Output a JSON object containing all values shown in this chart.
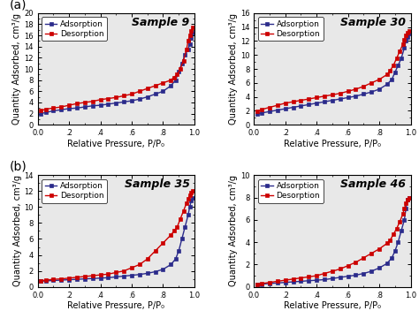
{
  "panels": [
    {
      "label": "(a)",
      "sample": "Sample 9",
      "ylim": [
        0,
        20
      ],
      "yticks": [
        0,
        2,
        4,
        6,
        8,
        10,
        12,
        14,
        16,
        18,
        20
      ],
      "adsorption_x": [
        0.02,
        0.05,
        0.1,
        0.15,
        0.2,
        0.25,
        0.3,
        0.35,
        0.4,
        0.45,
        0.5,
        0.55,
        0.6,
        0.65,
        0.7,
        0.75,
        0.8,
        0.85,
        0.88,
        0.9,
        0.92,
        0.94,
        0.96,
        0.97,
        0.98,
        0.99
      ],
      "adsorption_y": [
        2.0,
        2.2,
        2.5,
        2.7,
        2.9,
        3.0,
        3.2,
        3.4,
        3.5,
        3.7,
        3.9,
        4.1,
        4.3,
        4.6,
        5.0,
        5.5,
        6.0,
        7.0,
        8.0,
        9.5,
        11.0,
        12.5,
        13.5,
        14.5,
        15.5,
        16.5
      ],
      "desorption_x": [
        0.99,
        0.98,
        0.97,
        0.96,
        0.95,
        0.93,
        0.91,
        0.89,
        0.87,
        0.85,
        0.8,
        0.75,
        0.7,
        0.65,
        0.6,
        0.55,
        0.5,
        0.45,
        0.4,
        0.35,
        0.3,
        0.25,
        0.2,
        0.15,
        0.1,
        0.05,
        0.02
      ],
      "desorption_y": [
        17.5,
        16.8,
        16.0,
        15.0,
        13.5,
        11.5,
        10.0,
        9.0,
        8.5,
        8.0,
        7.5,
        7.0,
        6.5,
        6.0,
        5.5,
        5.2,
        4.9,
        4.7,
        4.5,
        4.2,
        4.0,
        3.8,
        3.5,
        3.2,
        3.0,
        2.8,
        2.5
      ]
    },
    {
      "label": "",
      "sample": "Sample 30",
      "ylim": [
        0,
        16
      ],
      "yticks": [
        0,
        2,
        4,
        6,
        8,
        10,
        12,
        14,
        16
      ],
      "adsorption_x": [
        0.02,
        0.05,
        0.1,
        0.15,
        0.2,
        0.25,
        0.3,
        0.35,
        0.4,
        0.45,
        0.5,
        0.55,
        0.6,
        0.65,
        0.7,
        0.75,
        0.8,
        0.85,
        0.88,
        0.9,
        0.92,
        0.94,
        0.96,
        0.97,
        0.98,
        0.99
      ],
      "adsorption_y": [
        1.5,
        1.7,
        1.9,
        2.1,
        2.3,
        2.5,
        2.7,
        2.9,
        3.1,
        3.3,
        3.5,
        3.7,
        3.9,
        4.1,
        4.4,
        4.7,
        5.1,
        5.8,
        6.5,
        7.5,
        8.5,
        9.5,
        11.0,
        12.0,
        12.5,
        13.0
      ],
      "desorption_x": [
        0.99,
        0.98,
        0.97,
        0.96,
        0.95,
        0.93,
        0.91,
        0.89,
        0.87,
        0.85,
        0.8,
        0.75,
        0.7,
        0.65,
        0.6,
        0.55,
        0.5,
        0.45,
        0.4,
        0.35,
        0.3,
        0.25,
        0.2,
        0.15,
        0.1,
        0.05,
        0.02
      ],
      "desorption_y": [
        13.5,
        13.2,
        12.8,
        12.2,
        11.5,
        10.5,
        9.5,
        8.5,
        7.8,
        7.2,
        6.5,
        6.0,
        5.5,
        5.1,
        4.8,
        4.5,
        4.3,
        4.1,
        3.9,
        3.7,
        3.5,
        3.3,
        3.1,
        2.8,
        2.5,
        2.2,
        1.9
      ]
    },
    {
      "label": "(b)",
      "sample": "Sample 35",
      "ylim": [
        0,
        14
      ],
      "yticks": [
        0,
        2,
        4,
        6,
        8,
        10,
        12,
        14
      ],
      "adsorption_x": [
        0.02,
        0.05,
        0.1,
        0.15,
        0.2,
        0.25,
        0.3,
        0.35,
        0.4,
        0.45,
        0.5,
        0.55,
        0.6,
        0.65,
        0.7,
        0.75,
        0.8,
        0.85,
        0.88,
        0.9,
        0.92,
        0.94,
        0.96,
        0.97,
        0.98,
        0.99
      ],
      "adsorption_y": [
        0.7,
        0.75,
        0.8,
        0.85,
        0.9,
        0.95,
        1.0,
        1.05,
        1.1,
        1.15,
        1.25,
        1.35,
        1.45,
        1.55,
        1.7,
        1.9,
        2.2,
        2.8,
        3.5,
        4.5,
        6.0,
        7.5,
        9.0,
        10.0,
        10.8,
        11.2
      ],
      "desorption_x": [
        0.99,
        0.98,
        0.97,
        0.96,
        0.95,
        0.93,
        0.91,
        0.89,
        0.87,
        0.85,
        0.8,
        0.75,
        0.7,
        0.65,
        0.6,
        0.55,
        0.5,
        0.45,
        0.4,
        0.35,
        0.3,
        0.25,
        0.2,
        0.15,
        0.1,
        0.05,
        0.02
      ],
      "desorption_y": [
        12.0,
        11.8,
        11.5,
        11.0,
        10.5,
        9.5,
        8.5,
        7.5,
        7.0,
        6.5,
        5.5,
        4.5,
        3.5,
        2.8,
        2.4,
        2.0,
        1.8,
        1.6,
        1.5,
        1.4,
        1.3,
        1.2,
        1.1,
        1.0,
        0.95,
        0.85,
        0.75
      ]
    },
    {
      "label": "",
      "sample": "Sample 46",
      "ylim": [
        0,
        10
      ],
      "yticks": [
        0,
        2,
        4,
        6,
        8,
        10
      ],
      "adsorption_x": [
        0.02,
        0.05,
        0.1,
        0.15,
        0.2,
        0.25,
        0.3,
        0.35,
        0.4,
        0.45,
        0.5,
        0.55,
        0.6,
        0.65,
        0.7,
        0.75,
        0.8,
        0.85,
        0.88,
        0.9,
        0.92,
        0.94,
        0.96,
        0.97,
        0.98,
        0.99
      ],
      "adsorption_y": [
        0.2,
        0.25,
        0.3,
        0.35,
        0.4,
        0.45,
        0.5,
        0.55,
        0.6,
        0.65,
        0.75,
        0.85,
        0.95,
        1.05,
        1.2,
        1.4,
        1.7,
        2.1,
        2.6,
        3.2,
        4.0,
        5.0,
        6.0,
        7.0,
        7.8,
        8.0
      ],
      "desorption_x": [
        0.99,
        0.98,
        0.97,
        0.96,
        0.95,
        0.93,
        0.91,
        0.89,
        0.87,
        0.85,
        0.8,
        0.75,
        0.7,
        0.65,
        0.6,
        0.55,
        0.5,
        0.45,
        0.4,
        0.35,
        0.3,
        0.25,
        0.2,
        0.15,
        0.1,
        0.05,
        0.02
      ],
      "desorption_y": [
        8.0,
        7.8,
        7.5,
        7.0,
        6.5,
        5.8,
        5.2,
        4.7,
        4.2,
        3.9,
        3.4,
        3.0,
        2.6,
        2.2,
        1.9,
        1.6,
        1.4,
        1.2,
        1.0,
        0.9,
        0.8,
        0.7,
        0.6,
        0.5,
        0.4,
        0.3,
        0.2
      ]
    }
  ],
  "adsorption_color": "#2b2b8b",
  "desorption_color": "#cc0000",
  "marker": "s",
  "markersize": 3,
  "linewidth": 1.0,
  "xlabel": "Relative Pressure, P/P₀",
  "ylabel": "Quantity Adsorbed, cm³/g",
  "xticklabels": [
    "0.0",
    ".2",
    ".4",
    ".6",
    ".8",
    "1.0"
  ],
  "background_color": "#e8e8e8",
  "legend_adsorption": "Adsorption",
  "legend_desorption": "Desorption",
  "panel_label_fontsize": 10,
  "sample_fontsize": 9,
  "axis_label_fontsize": 7,
  "tick_fontsize": 6,
  "legend_fontsize": 6.5,
  "hspace": 0.45,
  "wspace": 0.38
}
